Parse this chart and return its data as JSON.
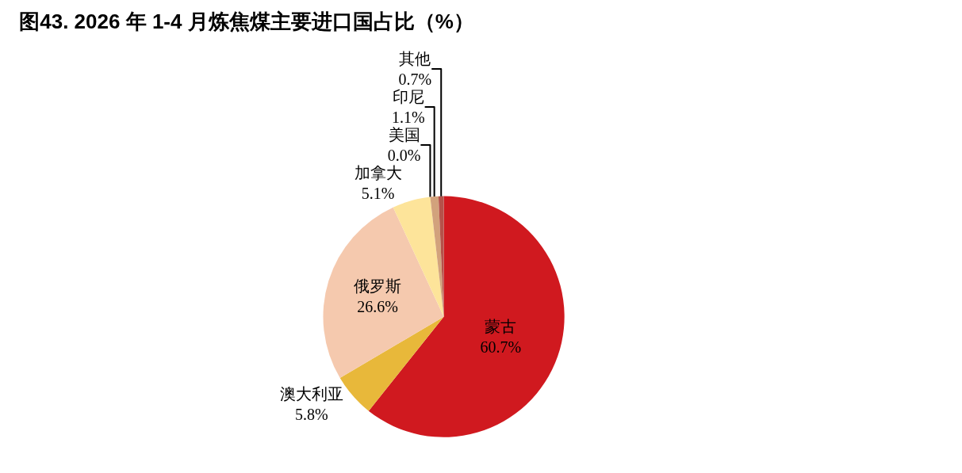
{
  "chart_data": {
    "type": "pie",
    "title": "图43. 2026 年 1-4 月炼焦煤主要进口国占比（%）",
    "categories": [
      "蒙古",
      "澳大利亚",
      "俄罗斯",
      "加拿大",
      "美国",
      "印尼",
      "其他"
    ],
    "values": [
      60.7,
      5.8,
      26.6,
      5.1,
      0.0,
      1.1,
      0.7
    ],
    "colors": [
      "#d0191f",
      "#e8b83a",
      "#f5c9ae",
      "#fde49a",
      "#e6c08a",
      "#d2a27c",
      "#b5524a"
    ],
    "value_labels": [
      "60.7%",
      "5.8%",
      "26.6%",
      "5.1%",
      "0.0%",
      "1.1%",
      "0.7%"
    ],
    "legend": false
  }
}
